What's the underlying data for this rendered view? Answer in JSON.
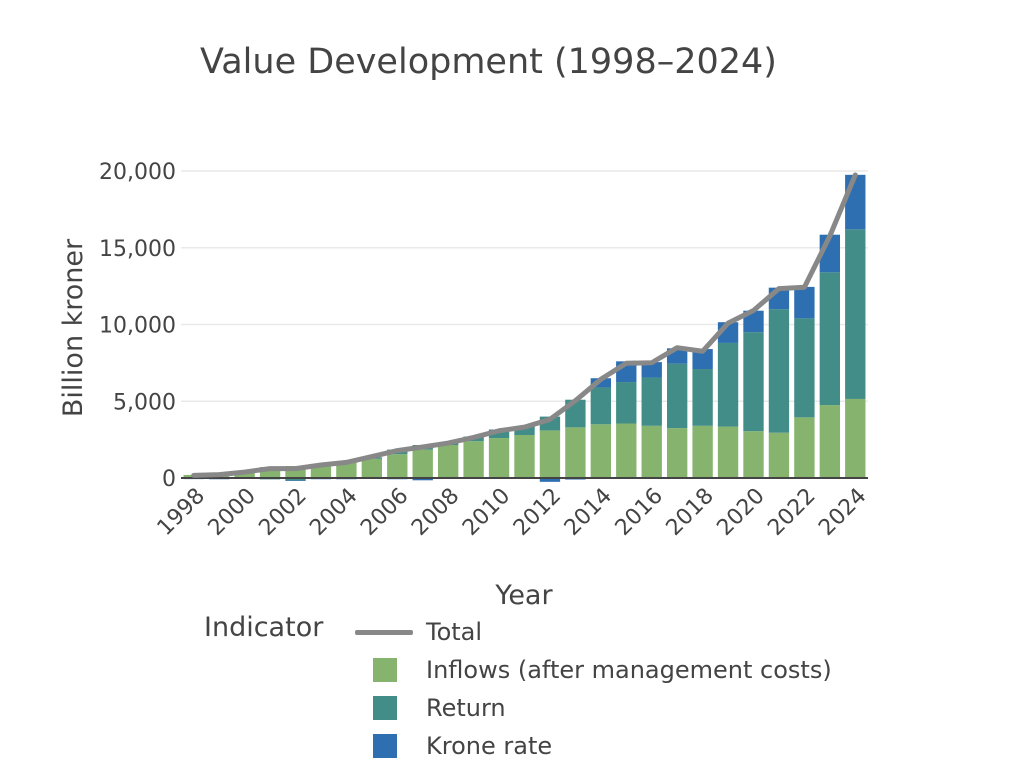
{
  "chart_data": {
    "type": "bar",
    "title": "Value Development (1998–2024)",
    "xlabel": "Year",
    "ylabel": "Billion kroner",
    "ylim": [
      -400,
      20400
    ],
    "y_ticks": [
      0,
      5000,
      10000,
      15000,
      20000
    ],
    "y_tick_labels": [
      "0",
      "5,000",
      "10,000",
      "15,000",
      "20,000"
    ],
    "x_tick_labels": [
      "1998",
      "2000",
      "2002",
      "2004",
      "2006",
      "2008",
      "2010",
      "2012",
      "2014",
      "2016",
      "2018",
      "2020",
      "2022",
      "2024"
    ],
    "barmode": "relative",
    "grid": true,
    "legend_title": "Indicator",
    "legend_placement": "bottom",
    "categories": [
      1998,
      1999,
      2000,
      2001,
      2002,
      2003,
      2004,
      2005,
      2006,
      2007,
      2008,
      2009,
      2010,
      2011,
      2012,
      2013,
      2014,
      2015,
      2016,
      2017,
      2018,
      2019,
      2020,
      2021,
      2022,
      2023,
      2024
    ],
    "series": [
      {
        "name": "Total",
        "kind": "line",
        "color": "#888888",
        "values": [
          172,
          222,
          386,
          613,
          609,
          845,
          1016,
          1399,
          1784,
          2019,
          2275,
          2640,
          3077,
          3312,
          3816,
          5038,
          6431,
          7475,
          7510,
          8488,
          8256,
          10088,
          10914,
          12340,
          12429,
          15765,
          19742
        ]
      },
      {
        "name": "Inflows (after management costs)",
        "kind": "bar",
        "color": "#86b46e",
        "values": [
          200,
          250,
          450,
          700,
          780,
          900,
          1050,
          1250,
          1550,
          1850,
          2150,
          2400,
          2600,
          2800,
          3100,
          3300,
          3500,
          3550,
          3400,
          3250,
          3400,
          3350,
          3050,
          2950,
          3950,
          4750,
          5150
        ]
      },
      {
        "name": "Return",
        "kind": "bar",
        "color": "#428d87",
        "values": [
          -40,
          -50,
          -60,
          -90,
          -160,
          -40,
          -40,
          100,
          300,
          300,
          100,
          300,
          550,
          550,
          900,
          1800,
          2400,
          2700,
          3150,
          4200,
          3700,
          5450,
          6450,
          8050,
          6450,
          8650,
          11050
        ]
      },
      {
        "name": "Krone rate",
        "kind": "bar",
        "color": "#2e6fb2",
        "values": [
          -20,
          -10,
          0,
          0,
          -20,
          -40,
          -40,
          -60,
          -80,
          -150,
          -20,
          -10,
          0,
          0,
          -250,
          -100,
          600,
          1350,
          1000,
          1000,
          1300,
          1350,
          1400,
          1400,
          2050,
          2450,
          3550
        ]
      }
    ]
  }
}
